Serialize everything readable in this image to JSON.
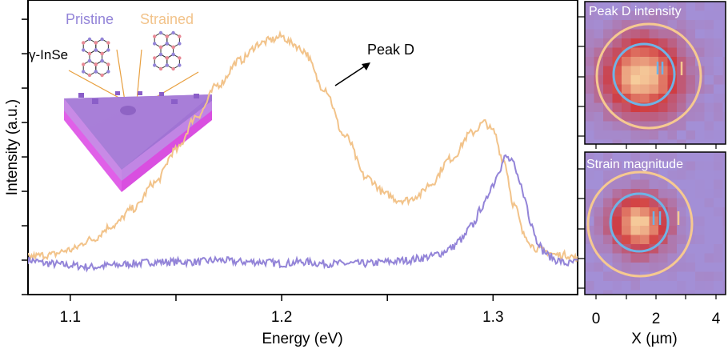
{
  "chart_data": [
    {
      "type": "line",
      "title": "",
      "xlabel": "Energy (eV)",
      "ylabel": "Intensity (a.u.)",
      "xlim": [
        1.08,
        1.34
      ],
      "ylim": [
        -1,
        7.56
      ],
      "x_ticks": [
        1.1,
        1.15,
        1.2,
        1.25,
        1.3
      ],
      "x_tick_labels": [
        "1.1",
        "",
        "1.2",
        "",
        "1.3"
      ],
      "y_ticks": [
        -1,
        0,
        1,
        2,
        3,
        4,
        5,
        6,
        7
      ],
      "y_tick_labels": [
        "",
        "",
        "",
        "",
        "",
        "",
        "",
        "",
        ""
      ],
      "grid": false,
      "legend": {
        "placement": "top-left",
        "entries": [
          "Pristine",
          "Strained"
        ]
      },
      "series": [
        {
          "name": "Pristine",
          "color": "#9384d8",
          "x": [
            1.08,
            1.09,
            1.1,
            1.11,
            1.12,
            1.13,
            1.14,
            1.15,
            1.16,
            1.17,
            1.18,
            1.19,
            1.2,
            1.21,
            1.22,
            1.23,
            1.24,
            1.25,
            1.26,
            1.265,
            1.27,
            1.275,
            1.28,
            1.285,
            1.29,
            1.295,
            1.3,
            1.303,
            1.306,
            1.309,
            1.312,
            1.315,
            1.318,
            1.321,
            1.324,
            1.327,
            1.33,
            1.335,
            1.34
          ],
          "y": [
            0.0,
            -0.1,
            -0.15,
            -0.2,
            -0.15,
            -0.1,
            -0.05,
            -0.05,
            -0.05,
            0.0,
            -0.05,
            -0.05,
            -0.1,
            -0.05,
            -0.1,
            -0.1,
            -0.1,
            -0.05,
            0.0,
            0.05,
            0.1,
            0.2,
            0.35,
            0.6,
            1.0,
            1.55,
            2.2,
            2.65,
            3.0,
            2.85,
            2.4,
            1.8,
            1.1,
            0.55,
            0.25,
            0.1,
            0.0,
            -0.1,
            -0.05
          ]
        },
        {
          "name": "Strained",
          "color": "#f2c38a",
          "x": [
            1.08,
            1.09,
            1.1,
            1.11,
            1.12,
            1.13,
            1.14,
            1.15,
            1.16,
            1.17,
            1.18,
            1.19,
            1.195,
            1.2,
            1.205,
            1.21,
            1.22,
            1.23,
            1.24,
            1.25,
            1.255,
            1.26,
            1.265,
            1.27,
            1.28,
            1.29,
            1.296,
            1.3,
            1.305,
            1.31,
            1.315,
            1.32,
            1.325,
            1.33,
            1.335,
            1.34
          ],
          "y": [
            0.1,
            0.15,
            0.3,
            0.6,
            1.0,
            1.5,
            2.25,
            3.2,
            4.2,
            5.1,
            5.8,
            6.3,
            6.4,
            6.5,
            6.3,
            6.1,
            5.0,
            3.6,
            2.4,
            1.9,
            1.75,
            1.75,
            1.9,
            2.2,
            2.95,
            3.7,
            4.0,
            3.75,
            2.9,
            1.6,
            0.7,
            0.35,
            0.25,
            0.15,
            0.15,
            0.05
          ]
        }
      ],
      "annotations": [
        {
          "text": "Peak D",
          "arrow": true,
          "target_x": 1.226,
          "target_y": 5.1
        },
        {
          "text": "γ-InSe",
          "kind": "inset-label"
        }
      ]
    },
    {
      "type": "heatmap",
      "title": "Peak D intensity",
      "xlabel": "",
      "ylabel": "",
      "x_ticks": [
        0,
        1,
        2,
        3,
        4
      ],
      "colormap": [
        "#a38fd6",
        "#d03a3e",
        "#f8d4a0"
      ],
      "overlays": [
        "outer circle (orange)",
        "inner circle (blue)",
        "region labels II and I"
      ]
    },
    {
      "type": "heatmap",
      "title": "Strain magnitude",
      "xlabel": "X (µm)",
      "ylabel": "",
      "x_ticks": [
        0,
        1,
        2,
        3,
        4
      ],
      "x_tick_labels": [
        "0",
        "",
        "2",
        "",
        "4"
      ],
      "colormap": [
        "#a38fd6",
        "#d03a3e",
        "#f8d4a0"
      ],
      "overlays": [
        "outer circle (orange)",
        "inner circle (blue)",
        "region labels II and I"
      ]
    }
  ],
  "inset": {
    "legend_pristine": "Pristine",
    "legend_strained": "Strained",
    "material_label": "γ-InSe"
  },
  "colors": {
    "pristine": "#9384d8",
    "strained": "#f2c38a",
    "axis": "#000000",
    "map_background": "#a38fd6",
    "outer_circle": "#f6c990",
    "inner_circle": "#6eb3e6"
  }
}
